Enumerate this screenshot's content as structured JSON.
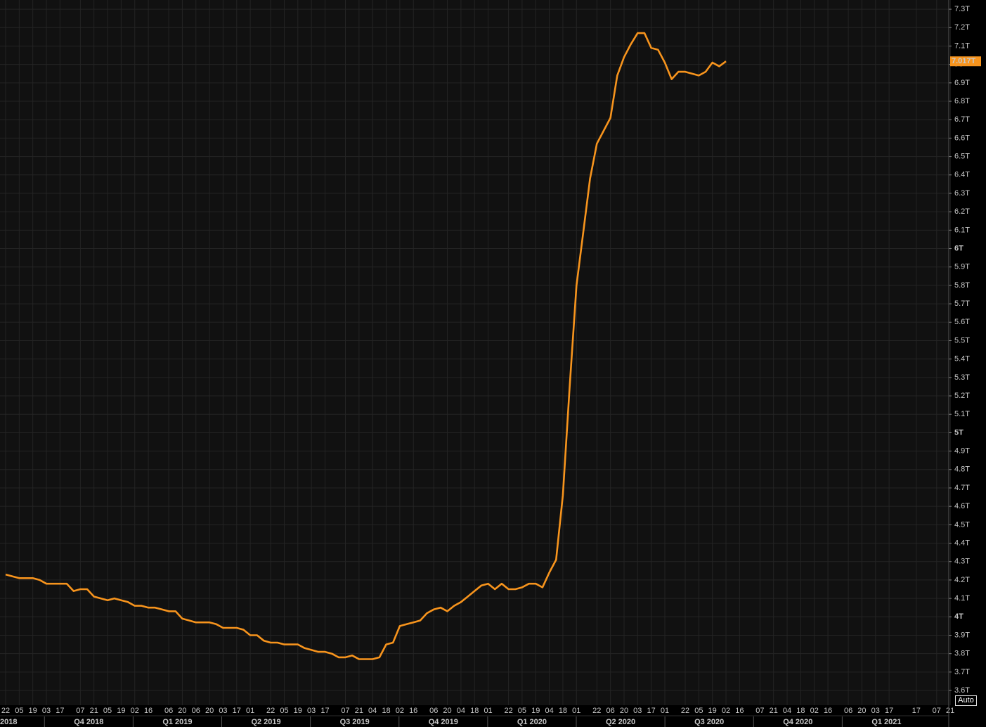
{
  "chart_data": {
    "type": "line",
    "color": "#f7941d",
    "grid": true,
    "categories": [
      "22",
      null,
      "05",
      null,
      "19",
      null,
      "03",
      null,
      "17",
      null,
      null,
      "07",
      null,
      "21",
      null,
      "05",
      null,
      "19",
      null,
      "02",
      null,
      "16",
      null,
      null,
      "06",
      null,
      "20",
      null,
      "06",
      null,
      "20",
      null,
      "03",
      null,
      "17",
      null,
      "01",
      null,
      null,
      "22",
      null,
      "05",
      null,
      "19",
      null,
      "03",
      null,
      "17",
      null,
      null,
      "07",
      null,
      "21",
      null,
      "04",
      null,
      "18",
      null,
      "02",
      null,
      "16",
      null,
      null,
      "06",
      null,
      "20",
      null,
      "04",
      null,
      "18",
      null,
      "01",
      null,
      null,
      "22",
      null,
      "05",
      null,
      "19",
      null,
      "04",
      null,
      "18",
      null,
      "01",
      null,
      null,
      "22",
      null,
      "06",
      null,
      "20",
      null,
      "03",
      null,
      "17",
      null,
      "01",
      null,
      null,
      "22",
      null,
      "05",
      null,
      "19",
      null,
      "02",
      null,
      "16",
      null,
      null,
      "07",
      null,
      "21",
      null,
      "04",
      null,
      "18",
      null,
      "02",
      null,
      "16",
      null,
      null,
      "06",
      null,
      "20",
      null,
      "03",
      null,
      "17",
      null,
      null,
      null,
      "17",
      null,
      null,
      "07",
      null,
      "21"
    ],
    "values": [
      4.23,
      4.22,
      4.21,
      4.21,
      4.21,
      4.2,
      4.18,
      4.18,
      4.18,
      4.18,
      4.14,
      4.15,
      4.15,
      4.11,
      4.1,
      4.09,
      4.1,
      4.09,
      4.08,
      4.06,
      4.06,
      4.05,
      4.05,
      4.04,
      4.03,
      4.03,
      3.99,
      3.98,
      3.97,
      3.97,
      3.97,
      3.96,
      3.94,
      3.94,
      3.94,
      3.93,
      3.9,
      3.9,
      3.87,
      3.86,
      3.86,
      3.85,
      3.85,
      3.85,
      3.83,
      3.82,
      3.81,
      3.81,
      3.8,
      3.78,
      3.78,
      3.79,
      3.77,
      3.77,
      3.77,
      3.78,
      3.85,
      3.86,
      3.95,
      3.96,
      3.97,
      3.98,
      4.02,
      4.04,
      4.05,
      4.03,
      4.06,
      4.08,
      4.11,
      4.14,
      4.17,
      4.18,
      4.15,
      4.18,
      4.15,
      4.15,
      4.16,
      4.18,
      4.18,
      4.16,
      4.24,
      4.31,
      4.66,
      5.25,
      5.8,
      6.09,
      6.38,
      6.57,
      6.64,
      6.71,
      6.94,
      7.04,
      7.11,
      7.17,
      7.17,
      7.09,
      7.08,
      7.01,
      6.92,
      6.96,
      6.96,
      6.95,
      6.94,
      6.96,
      7.01,
      6.99,
      7.017,
      null,
      null,
      null,
      null,
      null,
      null,
      null,
      null,
      null,
      null,
      null,
      null,
      null,
      null,
      null,
      null,
      null,
      null,
      null,
      null,
      null,
      null,
      null,
      null,
      null,
      null,
      null,
      null,
      null,
      null,
      null,
      null,
      null
    ],
    "quarters": [
      "2018",
      "Q4 2018",
      "Q1 2019",
      "Q2 2019",
      "Q3 2019",
      "Q4 2019",
      "Q1 2020",
      "Q2 2020",
      "Q3 2020",
      "Q4 2020",
      "Q1 2021"
    ],
    "current_value": {
      "value": 7.017,
      "label": "7.017T"
    },
    "ylim": [
      3.52,
      7.35
    ],
    "yticks": [
      {
        "value": 7.3,
        "label": "7.3T"
      },
      {
        "value": 7.2,
        "label": "7.2T"
      },
      {
        "value": 7.1,
        "label": "7.1T"
      },
      {
        "value": 7,
        "label": "7T"
      },
      {
        "value": 6.9,
        "label": "6.9T"
      },
      {
        "value": 6.8,
        "label": "6.8T"
      },
      {
        "value": 6.7,
        "label": "6.7T"
      },
      {
        "value": 6.6,
        "label": "6.6T"
      },
      {
        "value": 6.5,
        "label": "6.5T"
      },
      {
        "value": 6.4,
        "label": "6.4T"
      },
      {
        "value": 6.3,
        "label": "6.3T"
      },
      {
        "value": 6.2,
        "label": "6.2T"
      },
      {
        "value": 6.1,
        "label": "6.1T"
      },
      {
        "value": 6,
        "label": "6T"
      },
      {
        "value": 5.9,
        "label": "5.9T"
      },
      {
        "value": 5.8,
        "label": "5.8T"
      },
      {
        "value": 5.7,
        "label": "5.7T"
      },
      {
        "value": 5.6,
        "label": "5.6T"
      },
      {
        "value": 5.5,
        "label": "5.5T"
      },
      {
        "value": 5.4,
        "label": "5.4T"
      },
      {
        "value": 5.3,
        "label": "5.3T"
      },
      {
        "value": 5.2,
        "label": "5.2T"
      },
      {
        "value": 5.1,
        "label": "5.1T"
      },
      {
        "value": 5,
        "label": "5T"
      },
      {
        "value": 4.9,
        "label": "4.9T"
      },
      {
        "value": 4.8,
        "label": "4.8T"
      },
      {
        "value": 4.7,
        "label": "4.7T"
      },
      {
        "value": 4.6,
        "label": "4.6T"
      },
      {
        "value": 4.5,
        "label": "4.5T"
      },
      {
        "value": 4.4,
        "label": "4.4T"
      },
      {
        "value": 4.3,
        "label": "4.3T"
      },
      {
        "value": 4.2,
        "label": "4.2T"
      },
      {
        "value": 4.1,
        "label": "4.1T"
      },
      {
        "value": 4,
        "label": "4T"
      },
      {
        "value": 3.9,
        "label": "3.9T"
      },
      {
        "value": 3.8,
        "label": "3.8T"
      },
      {
        "value": 3.7,
        "label": "3.7T"
      },
      {
        "value": 3.6,
        "label": "3.6T"
      }
    ]
  },
  "controls": {
    "auto": "Auto"
  }
}
